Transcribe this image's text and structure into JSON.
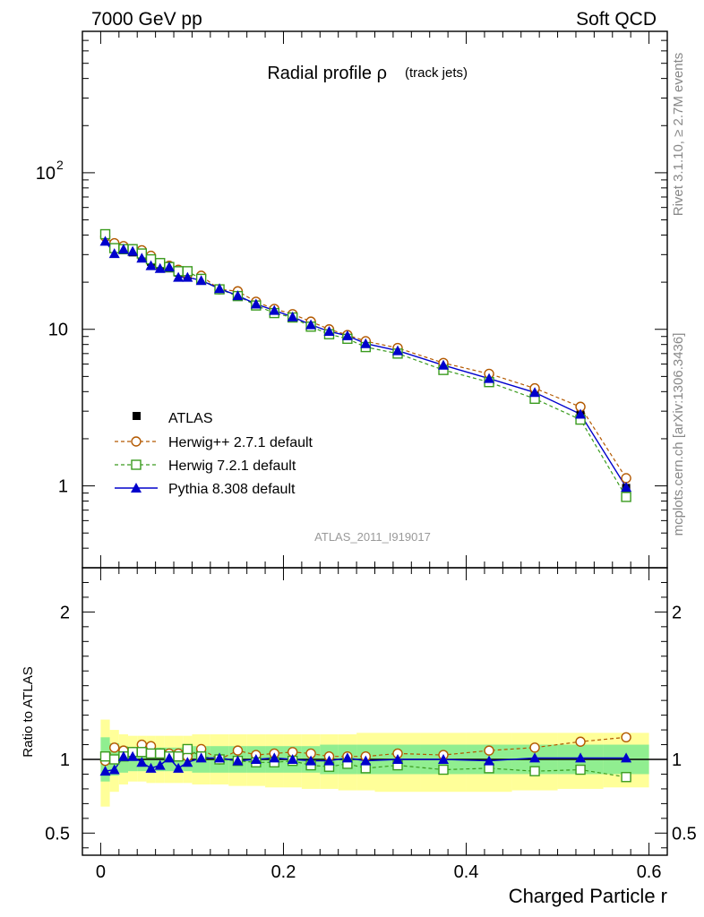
{
  "header": {
    "left": "7000 GeV pp",
    "right": "Soft QCD"
  },
  "side_labels": {
    "rivet": "Rivet 3.1.10, ≥ 2.7M events",
    "source": "mcplots.cern.ch [arXiv:1306.3436]"
  },
  "main_title": {
    "text": "Radial profile ρ",
    "sub": "(track jets)"
  },
  "analysis_id": "ATLAS_2011_I919017",
  "colors": {
    "atlas": "#000000",
    "herwigpp": "#b35900",
    "herwig7": "#3a9b1e",
    "pythia": "#0000cc",
    "band_inner": "#90ee90",
    "band_outer": "#ffff99"
  },
  "chart_data": [
    {
      "type": "line",
      "yscale": "log",
      "xlim": [
        -0.02,
        0.62
      ],
      "ylim": [
        0.3,
        800
      ],
      "yticks": [
        {
          "value": 100,
          "base": "10",
          "exp": "2"
        },
        {
          "value": 10,
          "label": "10"
        },
        {
          "value": 1,
          "label": "1"
        }
      ],
      "legend": "left",
      "series": [
        {
          "name": "ATLAS",
          "x": [
            0.005,
            0.015,
            0.025,
            0.035,
            0.045,
            0.055,
            0.065,
            0.075,
            0.085,
            0.095,
            0.11,
            0.13,
            0.15,
            0.17,
            0.19,
            0.21,
            0.23,
            0.25,
            0.27,
            0.29,
            0.325,
            0.375,
            0.425,
            0.475,
            0.525,
            0.575
          ],
          "y": [
            39.5,
            33.0,
            32.0,
            31.0,
            29.0,
            27.0,
            25.5,
            24.5,
            23.0,
            22.0,
            20.5,
            18.0,
            16.5,
            14.5,
            13.0,
            12.0,
            10.8,
            9.8,
            9.0,
            8.2,
            7.3,
            5.9,
            4.9,
            3.9,
            2.85,
            0.97
          ]
        },
        {
          "name": "Herwig++ 2.7.1 default",
          "x": [
            0.005,
            0.015,
            0.025,
            0.035,
            0.045,
            0.055,
            0.065,
            0.075,
            0.085,
            0.095,
            0.11,
            0.13,
            0.15,
            0.17,
            0.19,
            0.21,
            0.23,
            0.25,
            0.27,
            0.29,
            0.325,
            0.375,
            0.425,
            0.475,
            0.525,
            0.575
          ],
          "y": [
            39.0,
            35.5,
            34.0,
            32.5,
            32.0,
            29.5,
            26.5,
            25.5,
            24.0,
            22.5,
            22.0,
            18.0,
            17.5,
            15.0,
            13.5,
            12.5,
            11.2,
            10.0,
            9.2,
            8.4,
            7.6,
            6.1,
            5.2,
            4.2,
            3.2,
            1.12
          ]
        },
        {
          "name": "Herwig 7.2.1 default",
          "x": [
            0.005,
            0.015,
            0.025,
            0.035,
            0.045,
            0.055,
            0.065,
            0.075,
            0.085,
            0.095,
            0.11,
            0.13,
            0.15,
            0.17,
            0.19,
            0.21,
            0.23,
            0.25,
            0.27,
            0.29,
            0.325,
            0.375,
            0.425,
            0.475,
            0.525,
            0.575
          ],
          "y": [
            40.5,
            33.0,
            32.5,
            32.5,
            30.5,
            28.0,
            26.5,
            25.0,
            23.5,
            23.5,
            21.0,
            18.0,
            16.3,
            14.2,
            12.7,
            11.9,
            10.4,
            9.3,
            8.7,
            7.7,
            7.0,
            5.5,
            4.6,
            3.6,
            2.65,
            0.85
          ]
        },
        {
          "name": "Pythia 8.308 default",
          "x": [
            0.005,
            0.015,
            0.025,
            0.035,
            0.045,
            0.055,
            0.065,
            0.075,
            0.085,
            0.095,
            0.11,
            0.13,
            0.15,
            0.17,
            0.19,
            0.21,
            0.23,
            0.25,
            0.27,
            0.29,
            0.325,
            0.375,
            0.425,
            0.475,
            0.525,
            0.575
          ],
          "y": [
            36.5,
            30.5,
            32.5,
            31.5,
            28.5,
            25.5,
            24.5,
            25.0,
            21.5,
            21.5,
            20.5,
            18.2,
            16.4,
            14.5,
            13.2,
            12.0,
            10.7,
            9.7,
            9.1,
            8.1,
            7.3,
            5.9,
            4.85,
            3.95,
            2.87,
            0.98
          ]
        }
      ]
    },
    {
      "type": "line",
      "ylabel": "Ratio to ATLAS",
      "xlabel": "Charged Particle r",
      "xlim": [
        -0.02,
        0.62
      ],
      "ylim": [
        0.35,
        2.3
      ],
      "xticks": [
        {
          "value": 0,
          "label": "0"
        },
        {
          "value": 0.2,
          "label": "0.2"
        },
        {
          "value": 0.4,
          "label": "0.4"
        },
        {
          "value": 0.6,
          "label": "0.6"
        }
      ],
      "yticks": [
        {
          "value": 2,
          "label": "2"
        },
        {
          "value": 1,
          "label": "1"
        },
        {
          "value": 0.5,
          "label": "0.5"
        }
      ],
      "bands": {
        "x_edges": [
          0.0,
          0.01,
          0.02,
          0.03,
          0.04,
          0.05,
          0.06,
          0.07,
          0.08,
          0.09,
          0.1,
          0.12,
          0.14,
          0.16,
          0.18,
          0.2,
          0.22,
          0.24,
          0.26,
          0.28,
          0.3,
          0.35,
          0.4,
          0.45,
          0.5,
          0.55,
          0.6
        ],
        "inner_lo": [
          0.85,
          0.89,
          0.91,
          0.92,
          0.92,
          0.92,
          0.92,
          0.92,
          0.92,
          0.92,
          0.91,
          0.91,
          0.91,
          0.91,
          0.91,
          0.91,
          0.91,
          0.9,
          0.9,
          0.9,
          0.9,
          0.9,
          0.9,
          0.9,
          0.9,
          0.9
        ],
        "inner_hi": [
          1.15,
          1.11,
          1.09,
          1.08,
          1.08,
          1.08,
          1.08,
          1.08,
          1.08,
          1.08,
          1.09,
          1.09,
          1.09,
          1.09,
          1.09,
          1.09,
          1.09,
          1.1,
          1.1,
          1.1,
          1.1,
          1.1,
          1.1,
          1.1,
          1.1,
          1.1
        ],
        "outer_lo": [
          0.68,
          0.78,
          0.83,
          0.85,
          0.85,
          0.84,
          0.84,
          0.84,
          0.84,
          0.84,
          0.83,
          0.83,
          0.82,
          0.82,
          0.81,
          0.81,
          0.8,
          0.8,
          0.79,
          0.79,
          0.78,
          0.78,
          0.78,
          0.79,
          0.8,
          0.81
        ],
        "outer_hi": [
          1.27,
          1.2,
          1.17,
          1.16,
          1.16,
          1.16,
          1.16,
          1.16,
          1.16,
          1.16,
          1.17,
          1.17,
          1.17,
          1.17,
          1.17,
          1.17,
          1.17,
          1.17,
          1.17,
          1.18,
          1.18,
          1.18,
          1.18,
          1.18,
          1.18,
          1.18
        ]
      },
      "series": [
        {
          "name": "Herwig++ 2.7.1 default",
          "x": [
            0.005,
            0.015,
            0.025,
            0.035,
            0.045,
            0.055,
            0.065,
            0.075,
            0.085,
            0.095,
            0.11,
            0.13,
            0.15,
            0.17,
            0.19,
            0.21,
            0.23,
            0.25,
            0.27,
            0.29,
            0.325,
            0.375,
            0.425,
            0.475,
            0.525,
            0.575
          ],
          "y": [
            0.99,
            1.08,
            1.06,
            1.05,
            1.1,
            1.09,
            1.04,
            1.04,
            1.04,
            1.02,
            1.07,
            1.0,
            1.06,
            1.03,
            1.04,
            1.05,
            1.04,
            1.02,
            1.02,
            1.02,
            1.04,
            1.03,
            1.06,
            1.08,
            1.12,
            1.15
          ]
        },
        {
          "name": "Herwig 7.2.1 default",
          "x": [
            0.005,
            0.015,
            0.025,
            0.035,
            0.045,
            0.055,
            0.065,
            0.075,
            0.085,
            0.095,
            0.11,
            0.13,
            0.15,
            0.17,
            0.19,
            0.21,
            0.23,
            0.25,
            0.27,
            0.29,
            0.325,
            0.375,
            0.425,
            0.475,
            0.525,
            0.575
          ],
          "y": [
            1.02,
            1.0,
            1.02,
            1.05,
            1.05,
            1.04,
            1.04,
            1.02,
            1.02,
            1.07,
            1.02,
            1.0,
            0.99,
            0.98,
            0.98,
            0.99,
            0.96,
            0.95,
            0.97,
            0.94,
            0.96,
            0.93,
            0.94,
            0.92,
            0.93,
            0.88
          ]
        },
        {
          "name": "Pythia 8.308 default",
          "x": [
            0.005,
            0.015,
            0.025,
            0.035,
            0.045,
            0.055,
            0.065,
            0.075,
            0.085,
            0.095,
            0.11,
            0.13,
            0.15,
            0.17,
            0.19,
            0.21,
            0.23,
            0.25,
            0.27,
            0.29,
            0.325,
            0.375,
            0.425,
            0.475,
            0.525,
            0.575
          ],
          "y": [
            0.92,
            0.93,
            1.02,
            1.02,
            0.98,
            0.94,
            0.96,
            1.01,
            0.94,
            0.98,
            1.01,
            1.01,
            0.99,
            1.0,
            1.01,
            1.0,
            0.99,
            0.99,
            1.01,
            0.99,
            1.0,
            1.0,
            0.99,
            1.01,
            1.01,
            1.01
          ]
        }
      ]
    }
  ]
}
